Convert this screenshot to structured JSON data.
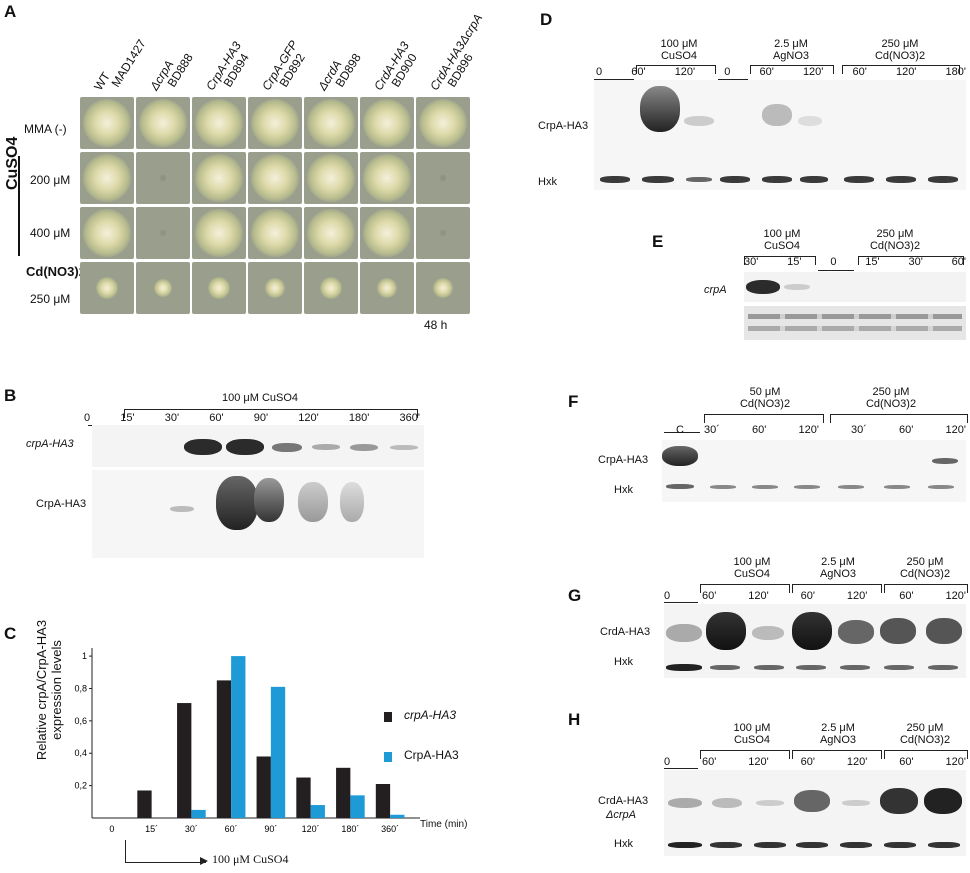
{
  "panels": {
    "A": {
      "label": "A",
      "strains": [
        {
          "line1": "WT",
          "line2": "MAD1427"
        },
        {
          "line1": "ΔcrpA",
          "line2": "BD888"
        },
        {
          "line1": "CrpA-HA3",
          "line2": "BD894"
        },
        {
          "line1": "CrpA-GFP",
          "line2": "BD892"
        },
        {
          "line1": "ΔcrdA",
          "line2": "BD898"
        },
        {
          "line1": "CrdA-HA3",
          "line2": "BD900"
        },
        {
          "line1": "CrdA-HA3ΔcrpA",
          "line2": "BD896"
        }
      ],
      "rows": {
        "mma": "MMA (-)",
        "cuso4": "CuSO4",
        "cu200": "200 μM",
        "cu400": "400 μM",
        "cd_compound": "Cd(NO3)2",
        "cd_conc": "250 μM"
      },
      "growth": [
        [
          1,
          1,
          1,
          1,
          1,
          1,
          1
        ],
        [
          1,
          0,
          1,
          1,
          1,
          1,
          0
        ],
        [
          1,
          0,
          1,
          1,
          1,
          1,
          0
        ],
        [
          0.4,
          0.3,
          0.4,
          0.35,
          0.4,
          0.35,
          0.35
        ]
      ],
      "time": "48 h"
    },
    "B": {
      "label": "B",
      "treatment": "100 μM CuSO4",
      "lanes": [
        "0",
        "15'",
        "30'",
        "60'",
        "90'",
        "120'",
        "180'",
        "360'"
      ],
      "row1": "crpA-HA3",
      "row2": "CrpA-HA3"
    },
    "C": {
      "label": "C",
      "ylabel_line1": "Relative crpA/CrpA-HA3",
      "ylabel_line2": "expression levels",
      "xlabel": "Time (min)",
      "arrow_label": "100 μM CuSO4",
      "legend": [
        "crpA-HA3",
        "CrpA-HA3"
      ]
    },
    "D": {
      "label": "D",
      "groups": [
        {
          "conc": "100 μM",
          "compound": "CuSO4"
        },
        {
          "conc": "2.5 μM",
          "compound": "AgNO3"
        },
        {
          "conc": "250 μM",
          "compound": "Cd(NO3)2"
        }
      ],
      "lanes": [
        "0",
        "60'",
        "120'",
        "0",
        "60'",
        "120'",
        "60'",
        "120'",
        "180'"
      ],
      "row1": "CrpA-HA3",
      "row2": "Hxk"
    },
    "E": {
      "label": "E",
      "groups": [
        {
          "conc": "100 μM",
          "compound": "CuSO4"
        },
        {
          "conc": "250 μM",
          "compound": "Cd(NO3)2"
        }
      ],
      "lanes": [
        "30'",
        "15'",
        "0",
        "15'",
        "30'",
        "60'"
      ],
      "row1": "crpA"
    },
    "F": {
      "label": "F",
      "control": "C",
      "groups": [
        {
          "conc": "50 μM",
          "compound": "Cd(NO3)2"
        },
        {
          "conc": "250 μM",
          "compound": "Cd(NO3)2"
        }
      ],
      "lanes": [
        "30´",
        "60'",
        "120'",
        "30´",
        "60'",
        "120'"
      ],
      "row1": "CrpA-HA3",
      "row2": "Hxk"
    },
    "G": {
      "label": "G",
      "groups": [
        {
          "conc": "100 μM",
          "compound": "CuSO4"
        },
        {
          "conc": "2.5 μM",
          "compound": "AgNO3"
        },
        {
          "conc": "250 μM",
          "compound": "Cd(NO3)2"
        }
      ],
      "lanes": [
        "0",
        "60'",
        "120'",
        "60'",
        "120'",
        "60'",
        "120'"
      ],
      "row1": "CrdA-HA3",
      "row2": "Hxk"
    },
    "H": {
      "label": "H",
      "groups": [
        {
          "conc": "100 μM",
          "compound": "CuSO4"
        },
        {
          "conc": "2.5 μM",
          "compound": "AgNO3"
        },
        {
          "conc": "250 μM",
          "compound": "Cd(NO3)2"
        }
      ],
      "lanes": [
        "0",
        "60'",
        "120'",
        "60'",
        "120'",
        "60'",
        "120'"
      ],
      "row1a": "CrdA-HA3",
      "row1b": "ΔcrpA",
      "row2": "Hxk"
    }
  },
  "chart_data": {
    "type": "bar",
    "categories": [
      "0",
      "15´",
      "30´",
      "60´",
      "90´",
      "120´",
      "180´",
      "360´"
    ],
    "series": [
      {
        "name": "crpA-HA3",
        "values": [
          0,
          0.17,
          0.71,
          0.85,
          0.38,
          0.25,
          0.31,
          0.21
        ],
        "color": "#231f20"
      },
      {
        "name": "CrpA-HA3",
        "values": [
          0,
          0,
          0.05,
          1.0,
          0.81,
          0.08,
          0.14,
          0.02
        ],
        "color": "#1e9bd7"
      }
    ],
    "yticks": [
      "0,2",
      "0,4",
      "0,6",
      "0,8",
      "1"
    ],
    "ylim": [
      0,
      1.05
    ],
    "ylabel": "Relative crpA/CrpA-HA3 expression levels",
    "xlabel": "Time (min)",
    "legend_position": "right"
  }
}
